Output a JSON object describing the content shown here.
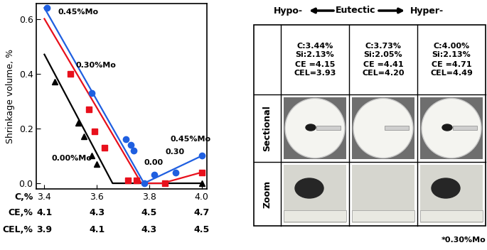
{
  "chart_data": {
    "type": "scatter",
    "ylabel": "Shrinkage volume, %",
    "xlabel": "C,%",
    "xlim": [
      3.37,
      4.02
    ],
    "xticks": [
      3.4,
      3.6,
      3.8,
      4.0
    ],
    "ylim": [
      -0.02,
      0.655
    ],
    "yticks": [
      0.0,
      0.2,
      0.4,
      0.6
    ],
    "extra_x_scales": [
      {
        "label": "CE,%",
        "ticks": [
          4.1,
          4.3,
          4.5,
          4.7
        ]
      },
      {
        "label": "CEL,%",
        "ticks": [
          3.9,
          4.1,
          4.3,
          4.5
        ]
      }
    ],
    "series": [
      {
        "name": "0.00%Mo",
        "color": "#000000",
        "marker": "triangle",
        "line_style": "solid",
        "x": [
          3.44,
          3.53,
          3.55,
          3.58,
          3.6,
          4.0
        ],
        "values": [
          0.37,
          0.22,
          0.17,
          0.1,
          0.07,
          0.0
        ],
        "fit": {
          "x": [
            3.4,
            3.66,
            4.0
          ],
          "values": [
            0.47,
            0.0,
            0.0
          ]
        }
      },
      {
        "name": "0.30%Mo",
        "color": "#e8101c",
        "marker": "square",
        "line_style": "solid",
        "x": [
          3.5,
          3.57,
          3.59,
          3.63,
          3.72,
          3.75,
          3.86,
          4.0
        ],
        "values": [
          0.4,
          0.27,
          0.19,
          0.13,
          0.01,
          0.01,
          0.0,
          0.04
        ],
        "fit": {
          "x": [
            3.4,
            3.77,
            3.85,
            4.0
          ],
          "values": [
            0.6,
            0.0,
            0.0,
            0.04
          ]
        }
      },
      {
        "name": "0.45%Mo",
        "color": "#1f5fe0",
        "marker": "circle",
        "line_style": "solid",
        "x": [
          3.41,
          3.58,
          3.71,
          3.73,
          3.74,
          3.78,
          3.82,
          3.9,
          4.0
        ],
        "values": [
          0.64,
          0.33,
          0.16,
          0.14,
          0.12,
          0.0,
          0.03,
          0.04,
          0.1
        ],
        "fit": {
          "x": [
            3.4,
            3.78,
            4.0
          ],
          "values": [
            0.64,
            0.0,
            0.1
          ]
        }
      }
    ],
    "annotations": [
      "0.45%Mo",
      "0.30",
      "0.00"
    ]
  },
  "panel": {
    "header": [
      "Hypo-",
      "Eutectic",
      "Hyper-"
    ],
    "columns": [
      {
        "lines": [
          "C:3.44%",
          "Si:2.13%",
          "CE =4.15",
          "CEL=3.93"
        ]
      },
      {
        "lines": [
          "C:3.73%",
          "Si:2.05%",
          "CE =4.41",
          "CEL=4.20"
        ]
      },
      {
        "lines": [
          "C:4.00%",
          "Si:2.13%",
          "CE =4.71",
          "CEL=4.49"
        ]
      }
    ],
    "rows": [
      "Sectional",
      "Zoom"
    ],
    "footnote": "*0.30%Mo"
  }
}
